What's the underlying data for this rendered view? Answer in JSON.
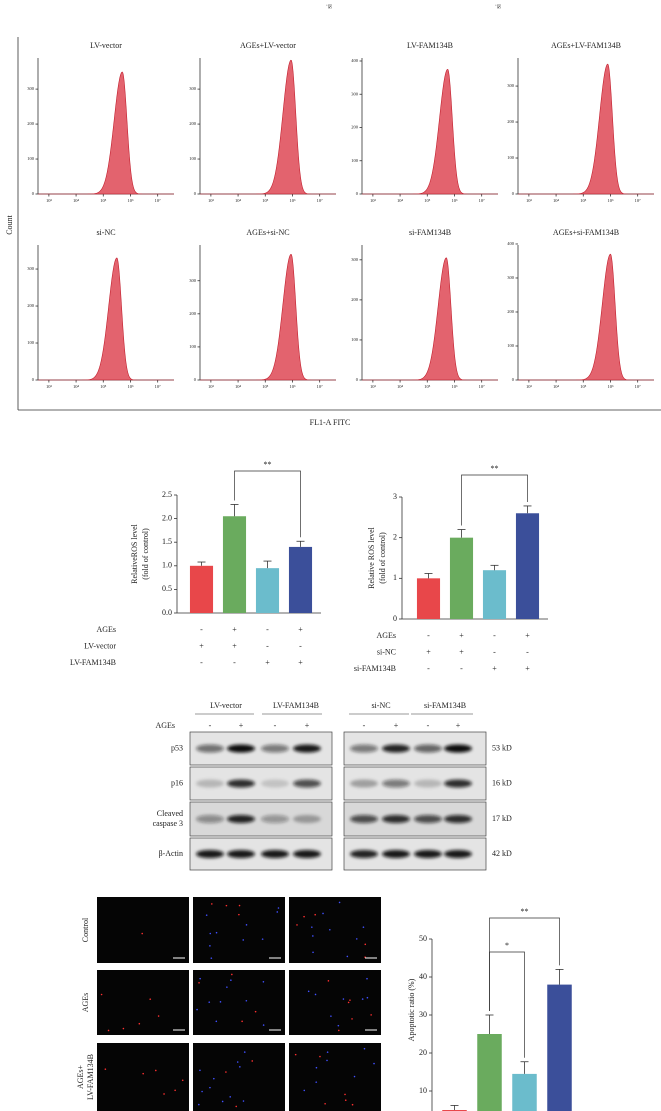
{
  "top_fragments": [
    "si",
    "si"
  ],
  "flow_labels": {
    "y_label": "Count",
    "x_label": "FL1-A FITC"
  },
  "chart_data": [
    {
      "type": "flow-histogram",
      "title": "LV-vector",
      "xlim": [
        2.6,
        7.6
      ],
      "xticks": [
        {
          "value": 3,
          "label": "10³"
        },
        {
          "value": 4,
          "label": "10⁴"
        },
        {
          "value": 5,
          "label": "10⁵"
        },
        {
          "value": 6,
          "label": "10⁶"
        },
        {
          "value": 7,
          "label": "10⁷"
        }
      ],
      "ylim": [
        0,
        389
      ],
      "yticks": [
        0,
        100,
        200,
        300
      ],
      "peak_x": 5.7,
      "peak_count": 349,
      "color": "#e0525e"
    },
    {
      "type": "flow-histogram",
      "title": "AGEs+LV-vector",
      "xlim": [
        2.6,
        7.6
      ],
      "xticks": [
        {
          "value": 3,
          "label": "10³"
        },
        {
          "value": 4,
          "label": "10⁴"
        },
        {
          "value": 5,
          "label": "10⁵"
        },
        {
          "value": 6,
          "label": "10⁶"
        },
        {
          "value": 7,
          "label": "10⁷"
        }
      ],
      "ylim": [
        0,
        389
      ],
      "yticks": [
        0,
        100,
        200,
        300
      ],
      "peak_x": 5.95,
      "peak_count": 383,
      "color": "#e0525e"
    },
    {
      "type": "flow-histogram",
      "title": "LV-FAM134B",
      "xlim": [
        2.6,
        7.6
      ],
      "xticks": [
        {
          "value": 3,
          "label": "10³"
        },
        {
          "value": 4,
          "label": "10⁴"
        },
        {
          "value": 5,
          "label": "10⁵"
        },
        {
          "value": 6,
          "label": "10⁶"
        },
        {
          "value": 7,
          "label": "10⁷"
        }
      ],
      "ylim": [
        0,
        409
      ],
      "yticks": [
        0,
        100,
        200,
        300,
        400
      ],
      "peak_x": 5.75,
      "peak_count": 375,
      "color": "#e0525e"
    },
    {
      "type": "flow-histogram",
      "title": "AGEs+LV-FAM134B",
      "xlim": [
        2.6,
        7.6
      ],
      "xticks": [
        {
          "value": 3,
          "label": "10³"
        },
        {
          "value": 4,
          "label": "10⁴"
        },
        {
          "value": 5,
          "label": "10⁵"
        },
        {
          "value": 6,
          "label": "10⁶"
        },
        {
          "value": 7,
          "label": "10⁷"
        }
      ],
      "ylim": [
        0,
        378
      ],
      "yticks": [
        0,
        100,
        200,
        300
      ],
      "peak_x": 5.9,
      "peak_count": 361,
      "color": "#e0525e"
    },
    {
      "type": "flow-histogram",
      "title": "si-NC",
      "xlim": [
        2.6,
        7.6
      ],
      "xticks": [
        {
          "value": 3,
          "label": "10³"
        },
        {
          "value": 4,
          "label": "10⁴"
        },
        {
          "value": 5,
          "label": "10⁵"
        },
        {
          "value": 6,
          "label": "10⁶"
        },
        {
          "value": 7,
          "label": "10⁷"
        }
      ],
      "ylim": [
        0,
        365
      ],
      "yticks": [
        0,
        100,
        200,
        300
      ],
      "peak_x": 5.5,
      "peak_count": 330,
      "color": "#e0525e"
    },
    {
      "type": "flow-histogram",
      "title": "AGEs+si-NC",
      "xlim": [
        2.6,
        7.6
      ],
      "xticks": [
        {
          "value": 3,
          "label": "10³"
        },
        {
          "value": 4,
          "label": "10⁴"
        },
        {
          "value": 5,
          "label": "10⁵"
        },
        {
          "value": 6,
          "label": "10⁶"
        },
        {
          "value": 7,
          "label": "10⁷"
        }
      ],
      "ylim": [
        0,
        408
      ],
      "yticks": [
        0,
        100,
        200,
        300
      ],
      "peak_x": 5.95,
      "peak_count": 380,
      "color": "#e0525e"
    },
    {
      "type": "flow-histogram",
      "title": "si-FAM134B",
      "xlim": [
        2.6,
        7.6
      ],
      "xticks": [
        {
          "value": 3,
          "label": "10³"
        },
        {
          "value": 4,
          "label": "10⁴"
        },
        {
          "value": 5,
          "label": "10⁵"
        },
        {
          "value": 6,
          "label": "10⁶"
        },
        {
          "value": 7,
          "label": "10⁷"
        }
      ],
      "ylim": [
        0,
        337
      ],
      "yticks": [
        0,
        100,
        200,
        300
      ],
      "peak_x": 5.7,
      "peak_count": 305,
      "color": "#e0525e"
    },
    {
      "type": "flow-histogram",
      "title": "AGEs+si-FAM134B",
      "xlim": [
        2.6,
        7.6
      ],
      "xticks": [
        {
          "value": 3,
          "label": "10³"
        },
        {
          "value": 4,
          "label": "10⁴"
        },
        {
          "value": 5,
          "label": "10⁵"
        },
        {
          "value": 6,
          "label": "10⁶"
        },
        {
          "value": 7,
          "label": "10⁷"
        }
      ],
      "ylim": [
        0,
        397
      ],
      "yticks": [
        0,
        100,
        200,
        300,
        400
      ],
      "peak_x": 6.0,
      "peak_count": 370,
      "color": "#e0525e"
    },
    {
      "type": "bar",
      "y_label": [
        "RelativeROS level",
        "(fold of control)"
      ],
      "ylim": [
        0,
        2.5
      ],
      "yticks": [
        {
          "value": 0,
          "label": "0.0"
        },
        0.5,
        {
          "value": 1,
          "label": "1.0"
        },
        1.5,
        {
          "value": 2,
          "label": "2.0"
        },
        2.5
      ],
      "values": [
        1.0,
        2.05,
        0.95,
        1.4
      ],
      "errors": [
        0.08,
        0.25,
        0.15,
        0.12
      ],
      "colors": [
        "#e8474a",
        "#6aab5e",
        "#6bbccc",
        "#3b4f9a"
      ],
      "conditions": [
        {
          "name": "AGEs",
          "signs": [
            "-",
            "+",
            "-",
            "+"
          ]
        },
        {
          "name": "LV-vector",
          "signs": [
            "+",
            "+",
            "-",
            "-"
          ]
        },
        {
          "name": "LV-FAM134B",
          "signs": [
            "-",
            "-",
            "+",
            "+"
          ]
        }
      ],
      "brackets": [
        {
          "bars": [
            1,
            3
          ],
          "label": "**"
        }
      ]
    },
    {
      "type": "bar",
      "y_label": [
        "Relative ROS level",
        "(fold of control)"
      ],
      "ylim": [
        0,
        3
      ],
      "yticks": [
        0,
        1,
        2,
        3
      ],
      "values": [
        1.0,
        2.0,
        1.2,
        2.6
      ],
      "errors": [
        0.12,
        0.2,
        0.12,
        0.18
      ],
      "colors": [
        "#e8474a",
        "#6aab5e",
        "#6bbccc",
        "#3b4f9a"
      ],
      "conditions": [
        {
          "name": "AGEs",
          "signs": [
            "-",
            "+",
            "-",
            "+"
          ]
        },
        {
          "name": "si-NC",
          "signs": [
            "+",
            "+",
            "-",
            "-"
          ]
        },
        {
          "name": "si-FAM134B",
          "signs": [
            "-",
            "-",
            "+",
            "+"
          ]
        }
      ],
      "brackets": [
        {
          "bars": [
            1,
            3
          ],
          "label": "**"
        }
      ]
    },
    {
      "type": "bar",
      "y_label": [
        "Apoptotic ratio (%)"
      ],
      "ylim": [
        0,
        50
      ],
      "yticks": [
        10,
        20,
        30,
        40,
        50
      ],
      "values": [
        5,
        25,
        14.5,
        38
      ],
      "errors": [
        1.2,
        5,
        3.2,
        4
      ],
      "colors": [
        "#e8474a",
        "#6aab5e",
        "#6bbccc",
        "#3b4f9a"
      ],
      "conditions": [],
      "brackets": [
        {
          "bars": [
            1,
            2
          ],
          "label": "*"
        },
        {
          "bars": [
            1,
            3
          ],
          "label": "**"
        }
      ]
    }
  ],
  "blot": {
    "groups": [
      "LV-vector",
      "LV-FAM134B",
      "si-NC",
      "si-FAM134B"
    ],
    "treatment": "AGEs",
    "signs": [
      "-",
      "+",
      "-",
      "+",
      "-",
      "+",
      "-",
      "+"
    ],
    "rows": [
      {
        "name": [
          "p53"
        ],
        "size": "53 kD"
      },
      {
        "name": [
          "p16"
        ],
        "size": "16 kD"
      },
      {
        "name": [
          "Cleaved",
          "caspase 3"
        ],
        "size": "17 kD"
      },
      {
        "name": [
          "β-Actin"
        ],
        "size": "42 kD"
      }
    ]
  },
  "images": {
    "rows": [
      [
        "Control"
      ],
      [
        "AGEs"
      ],
      [
        "AGEs+",
        "LV-FAM134B"
      ]
    ]
  }
}
